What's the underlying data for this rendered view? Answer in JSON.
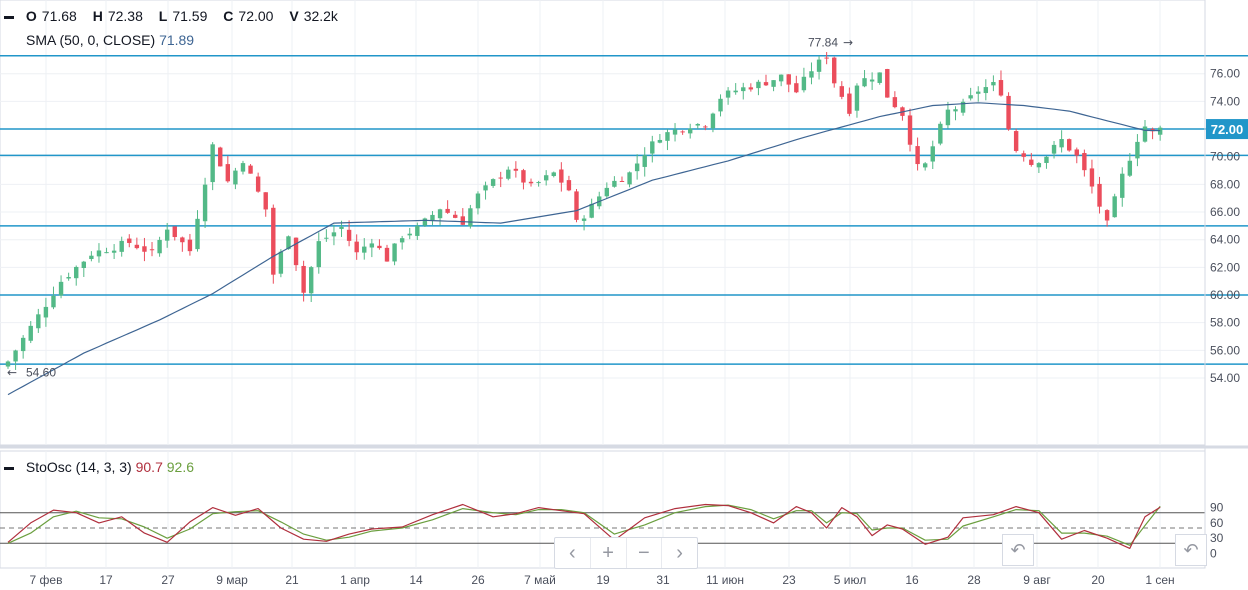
{
  "main_legend": {
    "ohlc": [
      {
        "key": "O",
        "value": "71.68"
      },
      {
        "key": "H",
        "value": "72.38"
      },
      {
        "key": "L",
        "value": "71.59"
      },
      {
        "key": "C",
        "value": "72.00"
      },
      {
        "key": "V",
        "value": "32.2k"
      }
    ],
    "sma_label": "SMA (50, 0, CLOSE)",
    "sma_value": "71.89"
  },
  "osc_legend": {
    "label": "StoOsc (14, 3, 3)",
    "k_value": "90.7",
    "d_value": "92.6"
  },
  "colors": {
    "up": "#53b987",
    "down": "#eb4d5c",
    "sma": "#3e6593",
    "hline": "#2196c9",
    "osc_k": "#b02f3d",
    "osc_d": "#6b9f3f",
    "last_price_bg": "#2196c9"
  },
  "nav": {
    "icons": [
      "chevron-left-icon",
      "plus-icon",
      "minus-icon",
      "chevron-right-icon"
    ],
    "glyphs": [
      "‹",
      "+",
      "−",
      "›"
    ]
  },
  "chart_data": [
    {
      "type": "candlestick",
      "y_ticks": [
        "76.00",
        "74.00",
        "72.00",
        "70.00",
        "68.00",
        "66.00",
        "64.00",
        "62.00",
        "60.00",
        "58.00",
        "56.00",
        "54.00"
      ],
      "ylim": [
        52.5,
        78.5
      ],
      "x_tick_labels": [
        "7 фев",
        "17",
        "27",
        "9 мар",
        "21",
        "1 апр",
        "14",
        "26",
        "7 май",
        "19",
        "31",
        "11 июн",
        "23",
        "5 июл",
        "16",
        "28",
        "9 авг",
        "20",
        "1 сен"
      ],
      "last_price": "72.00",
      "horizontal_levels": [
        77.3,
        72.0,
        70.1,
        65.0,
        60.0,
        55.0
      ],
      "annotations": [
        {
          "text": "77.84",
          "value": 77.84,
          "at": "5 июл"
        },
        {
          "text": "54.60",
          "value": 54.6,
          "at": "start"
        }
      ],
      "sma_period": 50,
      "close_path": [
        [
          0,
          55.2
        ],
        [
          4,
          58.5
        ],
        [
          7,
          61.0
        ],
        [
          11,
          63.0
        ],
        [
          16,
          63.8
        ],
        [
          19,
          63.0
        ],
        [
          21,
          64.9
        ],
        [
          24,
          63.2
        ],
        [
          27,
          70.8
        ],
        [
          29,
          68.2
        ],
        [
          31,
          69.8
        ],
        [
          34,
          66.2
        ],
        [
          35,
          61.5
        ],
        [
          37,
          64.5
        ],
        [
          39,
          60.2
        ],
        [
          41,
          63.8
        ],
        [
          44,
          64.9
        ],
        [
          46,
          63.0
        ],
        [
          48,
          64.0
        ],
        [
          50,
          62.6
        ],
        [
          52,
          64.3
        ],
        [
          54,
          64.8
        ],
        [
          57,
          66.3
        ],
        [
          60,
          65.3
        ],
        [
          62,
          67.2
        ],
        [
          66,
          69.2
        ],
        [
          69,
          67.8
        ],
        [
          72,
          68.8
        ],
        [
          74,
          67.6
        ],
        [
          75,
          65.2
        ],
        [
          77,
          66.4
        ],
        [
          79,
          67.9
        ],
        [
          82,
          68.8
        ],
        [
          84,
          70.3
        ],
        [
          86,
          71.5
        ],
        [
          88,
          71.9
        ],
        [
          90,
          72.3
        ],
        [
          92,
          72.4
        ],
        [
          94,
          74.3
        ],
        [
          96,
          74.8
        ],
        [
          98,
          75.1
        ],
        [
          100,
          75.4
        ],
        [
          102,
          75.8
        ],
        [
          104,
          74.7
        ],
        [
          106,
          76.3
        ],
        [
          108,
          77.3
        ],
        [
          109,
          75.4
        ],
        [
          110,
          74.4
        ],
        [
          111,
          73.4
        ],
        [
          112,
          75.3
        ],
        [
          113,
          75.6
        ],
        [
          115,
          76.0
        ],
        [
          116,
          74.4
        ],
        [
          118,
          73.1
        ],
        [
          120,
          69.2
        ],
        [
          121,
          69.4
        ],
        [
          123,
          72.1
        ],
        [
          124,
          73.3
        ],
        [
          126,
          73.7
        ],
        [
          128,
          74.8
        ],
        [
          130,
          75.2
        ],
        [
          131,
          74.7
        ],
        [
          132,
          72.0
        ],
        [
          133,
          70.5
        ],
        [
          134,
          70.2
        ],
        [
          135,
          69.5
        ],
        [
          137,
          70.1
        ],
        [
          139,
          71.2
        ],
        [
          141,
          70.0
        ],
        [
          143,
          67.8
        ],
        [
          145,
          65.1
        ],
        [
          147,
          68.6
        ],
        [
          149,
          71.3
        ],
        [
          150,
          72.2
        ],
        [
          151,
          71.7
        ],
        [
          152,
          72.0
        ]
      ],
      "sma_path": [
        [
          0,
          52.8
        ],
        [
          10,
          55.8
        ],
        [
          20,
          58.2
        ],
        [
          27,
          60.1
        ],
        [
          35,
          62.8
        ],
        [
          43,
          65.2
        ],
        [
          55,
          65.4
        ],
        [
          65,
          65.2
        ],
        [
          75,
          66.1
        ],
        [
          85,
          68.3
        ],
        [
          95,
          69.7
        ],
        [
          105,
          71.4
        ],
        [
          115,
          72.9
        ],
        [
          122,
          73.7
        ],
        [
          128,
          73.9
        ],
        [
          134,
          73.7
        ],
        [
          140,
          73.3
        ],
        [
          145,
          72.6
        ],
        [
          150,
          71.9
        ],
        [
          152,
          71.89
        ]
      ]
    },
    {
      "type": "line",
      "name": "StoOsc",
      "y_ticks": [
        "90",
        "60",
        "30",
        "0"
      ],
      "ylim": [
        -10,
        105
      ],
      "levels": [
        80,
        50,
        20
      ],
      "k_path": [
        [
          0,
          22
        ],
        [
          3,
          60
        ],
        [
          6,
          85
        ],
        [
          9,
          80
        ],
        [
          12,
          60
        ],
        [
          15,
          72
        ],
        [
          18,
          40
        ],
        [
          21,
          22
        ],
        [
          24,
          62
        ],
        [
          27,
          90
        ],
        [
          30,
          75
        ],
        [
          33,
          88
        ],
        [
          36,
          50
        ],
        [
          39,
          28
        ],
        [
          42,
          24
        ],
        [
          45,
          38
        ],
        [
          48,
          48
        ],
        [
          52,
          52
        ],
        [
          56,
          76
        ],
        [
          60,
          96
        ],
        [
          64,
          72
        ],
        [
          67,
          78
        ],
        [
          70,
          90
        ],
        [
          73,
          84
        ],
        [
          76,
          78
        ],
        [
          80,
          26
        ],
        [
          84,
          70
        ],
        [
          88,
          88
        ],
        [
          92,
          96
        ],
        [
          95,
          94
        ],
        [
          98,
          80
        ],
        [
          101,
          60
        ],
        [
          104,
          92
        ],
        [
          106,
          80
        ],
        [
          108,
          50
        ],
        [
          110,
          90
        ],
        [
          112,
          72
        ],
        [
          114,
          35
        ],
        [
          116,
          56
        ],
        [
          118,
          48
        ],
        [
          121,
          18
        ],
        [
          124,
          32
        ],
        [
          126,
          70
        ],
        [
          130,
          76
        ],
        [
          133,
          92
        ],
        [
          136,
          80
        ],
        [
          139,
          28
        ],
        [
          142,
          45
        ],
        [
          145,
          30
        ],
        [
          148,
          10
        ],
        [
          150,
          72
        ],
        [
          152,
          90.7
        ]
      ],
      "d_path": [
        [
          0,
          20
        ],
        [
          3,
          40
        ],
        [
          6,
          72
        ],
        [
          9,
          83
        ],
        [
          12,
          70
        ],
        [
          15,
          68
        ],
        [
          18,
          52
        ],
        [
          21,
          30
        ],
        [
          24,
          48
        ],
        [
          27,
          78
        ],
        [
          30,
          82
        ],
        [
          33,
          84
        ],
        [
          36,
          62
        ],
        [
          39,
          38
        ],
        [
          42,
          26
        ],
        [
          45,
          32
        ],
        [
          48,
          44
        ],
        [
          52,
          50
        ],
        [
          56,
          66
        ],
        [
          60,
          88
        ],
        [
          64,
          80
        ],
        [
          67,
          76
        ],
        [
          70,
          86
        ],
        [
          73,
          86
        ],
        [
          76,
          80
        ],
        [
          80,
          38
        ],
        [
          84,
          56
        ],
        [
          88,
          80
        ],
        [
          92,
          92
        ],
        [
          95,
          95
        ],
        [
          98,
          86
        ],
        [
          101,
          68
        ],
        [
          104,
          84
        ],
        [
          106,
          84
        ],
        [
          108,
          60
        ],
        [
          110,
          80
        ],
        [
          112,
          78
        ],
        [
          114,
          46
        ],
        [
          116,
          50
        ],
        [
          118,
          50
        ],
        [
          121,
          26
        ],
        [
          124,
          28
        ],
        [
          126,
          54
        ],
        [
          130,
          72
        ],
        [
          133,
          86
        ],
        [
          136,
          84
        ],
        [
          139,
          40
        ],
        [
          142,
          40
        ],
        [
          145,
          34
        ],
        [
          148,
          16
        ],
        [
          150,
          55
        ],
        [
          152,
          92.6
        ]
      ]
    }
  ]
}
